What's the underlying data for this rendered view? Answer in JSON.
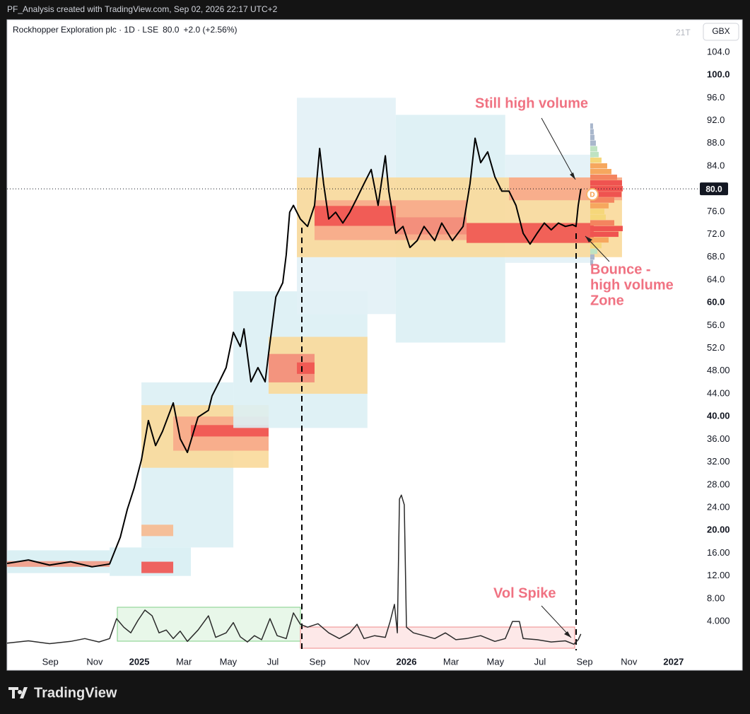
{
  "header": "PF_Analysis created with TradingView.com, Sep 02, 2026 22:17 UTC+2",
  "footer": "TradingView",
  "interval_badge": "21T",
  "currency": "GBX",
  "chart_data": {
    "type": "line",
    "title": "Rockhopper Exploration plc · 1D · LSE",
    "price_label": "80.0",
    "change_label": "+2.0 (+2.56%)",
    "last_price": {
      "value": 80,
      "label": "80.0"
    },
    "annotations": {
      "still_high": "Still high volume",
      "bounce": [
        "Bounce -",
        "high volume",
        "Zone"
      ],
      "vol_spike": "Vol Spike"
    },
    "xlim": [
      2024.505,
      2027.085
    ],
    "xticks": [
      {
        "value": 2024.667,
        "label": "Sep"
      },
      {
        "value": 2024.833,
        "label": "Nov"
      },
      2025,
      {
        "value": 2025.167,
        "label": "Mar"
      },
      {
        "value": 2025.333,
        "label": "May"
      },
      {
        "value": 2025.5,
        "label": "Jul"
      },
      {
        "value": 2025.667,
        "label": "Sep"
      },
      {
        "value": 2025.833,
        "label": "Nov"
      },
      2026,
      {
        "value": 2026.167,
        "label": "Mar"
      },
      {
        "value": 2026.333,
        "label": "May"
      },
      {
        "value": 2026.5,
        "label": "Jul"
      },
      {
        "value": 2026.667,
        "label": "Sep"
      },
      {
        "value": 2026.833,
        "label": "Nov"
      },
      2027
    ],
    "ylim": [
      -1.7,
      109.7
    ],
    "yticks": [
      {
        "value": 104,
        "label": "104.0"
      },
      {
        "value": 100,
        "label": "100.0"
      },
      {
        "value": 96,
        "label": "96.0"
      },
      {
        "value": 92,
        "label": "92.0"
      },
      {
        "value": 88,
        "label": "88.0"
      },
      {
        "value": 84,
        "label": "84.0"
      },
      {
        "value": 76,
        "label": "76.0"
      },
      {
        "value": 72,
        "label": "72.0"
      },
      {
        "value": 68,
        "label": "68.0"
      },
      {
        "value": 64,
        "label": "64.0"
      },
      {
        "value": 60,
        "label": "60.0"
      },
      {
        "value": 56,
        "label": "56.0"
      },
      {
        "value": 52,
        "label": "52.0"
      },
      {
        "value": 48,
        "label": "48.00"
      },
      {
        "value": 44,
        "label": "44.00"
      },
      {
        "value": 40,
        "label": "40.00"
      },
      {
        "value": 36,
        "label": "36.00"
      },
      {
        "value": 32,
        "label": "32.00"
      },
      {
        "value": 28,
        "label": "28.00"
      },
      {
        "value": 24,
        "label": "24.00"
      },
      {
        "value": 20,
        "label": "20.00"
      },
      {
        "value": 16,
        "label": "16.00"
      },
      {
        "value": 12,
        "label": "12.00"
      },
      {
        "value": 8,
        "label": "8.00"
      },
      {
        "value": 4,
        "label": "4.000"
      }
    ],
    "grid": false,
    "series": [
      {
        "color": "#000000",
        "width": 2,
        "x": [
          2024.505,
          2024.585,
          2024.664,
          2024.743,
          2024.823,
          2024.889,
          2024.929,
          2024.955,
          2024.981,
          2025.008,
          2025.034,
          2025.061,
          2025.087,
          2025.127,
          2025.153,
          2025.18,
          2025.22,
          2025.259,
          2025.272,
          2025.299,
          2025.325,
          2025.352,
          2025.378,
          2025.392,
          2025.418,
          2025.444,
          2025.471,
          2025.484,
          2025.511,
          2025.537,
          2025.55,
          2025.563,
          2025.577,
          2025.603,
          2025.63,
          2025.656,
          2025.675,
          2025.69,
          2025.709,
          2025.735,
          2025.762,
          2025.788,
          2025.815,
          2025.841,
          2025.868,
          2025.894,
          2025.921,
          2025.934,
          2025.96,
          2025.987,
          2026.013,
          2026.04,
          2026.066,
          2026.106,
          2026.132,
          2026.172,
          2026.212,
          2026.238,
          2026.257,
          2026.278,
          2026.304,
          2026.331,
          2026.357,
          2026.384,
          2026.41,
          2026.437,
          2026.463,
          2026.489,
          2026.516,
          2026.542,
          2026.569,
          2026.595,
          2026.622,
          2026.635,
          2026.643,
          2026.653
        ],
        "values": [
          14.2,
          14.8,
          13.9,
          14.5,
          13.6,
          14.1,
          18.8,
          23.7,
          27.5,
          32.4,
          39.3,
          34.9,
          37.4,
          42.4,
          36.1,
          33.7,
          39.9,
          41.1,
          43.6,
          46.1,
          48.6,
          54.8,
          52.3,
          55.4,
          46.1,
          48.6,
          46.1,
          51.1,
          61.0,
          63.5,
          68.4,
          75.9,
          77.1,
          74.7,
          73.4,
          77.1,
          87.1,
          80.9,
          74.7,
          75.9,
          74.0,
          75.9,
          78.4,
          80.9,
          83.4,
          77.1,
          85.8,
          79.6,
          72.2,
          73.4,
          69.7,
          70.9,
          73.4,
          70.9,
          74.0,
          70.9,
          73.4,
          80.9,
          88.9,
          84.6,
          86.5,
          82.1,
          79.6,
          79.6,
          77.1,
          72.2,
          70.3,
          72.2,
          74.0,
          72.8,
          74.0,
          73.4,
          73.7,
          73.4,
          77.1,
          80.0
        ]
      },
      {
        "color": "#2a2a2a",
        "width": 1.5,
        "x": [
          2024.505,
          2024.585,
          2024.664,
          2024.743,
          2024.796,
          2024.849,
          2024.889,
          2024.915,
          2024.942,
          2024.968,
          2024.995,
          2025.021,
          2025.048,
          2025.074,
          2025.101,
          2025.127,
          2025.153,
          2025.18,
          2025.22,
          2025.259,
          2025.286,
          2025.325,
          2025.352,
          2025.378,
          2025.405,
          2025.431,
          2025.458,
          2025.489,
          2025.516,
          2025.55,
          2025.577,
          2025.603,
          2025.63,
          2025.669,
          2025.709,
          2025.749,
          2025.788,
          2025.815,
          2025.841,
          2025.881,
          2025.921,
          2025.939,
          2025.955,
          2025.966,
          2025.974,
          2025.981,
          2025.992,
          2026.0,
          2026.026,
          2026.066,
          2026.106,
          2026.146,
          2026.185,
          2026.225,
          2026.278,
          2026.331,
          2026.37,
          2026.397,
          2026.423,
          2026.437,
          2026.489,
          2026.542,
          2026.595,
          2026.627,
          2026.643,
          2026.653
        ],
        "values": [
          0.2,
          0.6,
          0.1,
          0.5,
          1.0,
          0.4,
          1.0,
          4.5,
          3.0,
          2.0,
          4.2,
          6.0,
          5.0,
          2.0,
          2.5,
          1.0,
          2.3,
          0.5,
          2.5,
          5.0,
          1.2,
          2.0,
          3.8,
          1.3,
          0.4,
          1.5,
          0.8,
          4.5,
          1.5,
          1.0,
          5.5,
          3.5,
          3.0,
          3.6,
          2.0,
          1.0,
          2.0,
          3.5,
          1.0,
          1.5,
          1.2,
          4.0,
          7.0,
          2.0,
          25.5,
          26.2,
          24.5,
          3.0,
          2.0,
          1.5,
          1.0,
          2.0,
          0.8,
          1.0,
          1.5,
          0.5,
          1.0,
          4.0,
          4.0,
          1.0,
          0.8,
          0.4,
          0.6,
          0.0,
          0.8,
          1.8
        ]
      }
    ],
    "heatmap": [
      {
        "x": [
          2024.505,
          2024.889
        ],
        "y": [
          12.5,
          16.5
        ],
        "color": "#d7eef3"
      },
      {
        "x": [
          2024.505,
          2024.889
        ],
        "y": [
          13.6,
          14.6
        ],
        "color": "#f29a85"
      },
      {
        "x": [
          2024.889,
          2025.193
        ],
        "y": [
          12,
          17
        ],
        "color": "#d7eef3"
      },
      {
        "x": [
          2025.008,
          2025.127
        ],
        "y": [
          12.5,
          14.5
        ],
        "color": "#ef5350"
      },
      {
        "x": [
          2025.008,
          2025.352
        ],
        "y": [
          17,
          46
        ],
        "color": "#dcf0f4"
      },
      {
        "x": [
          2025.008,
          2025.484
        ],
        "y": [
          31,
          42
        ],
        "color": "#f9d99a"
      },
      {
        "x": [
          2025.127,
          2025.484
        ],
        "y": [
          34,
          40
        ],
        "color": "#f7a989"
      },
      {
        "x": [
          2025.193,
          2025.484
        ],
        "y": [
          36.5,
          38.5
        ],
        "color": "#ef5350"
      },
      {
        "x": [
          2025.008,
          2025.127
        ],
        "y": [
          19,
          21
        ],
        "color": "#f7b98f"
      },
      {
        "x": [
          2025.352,
          2025.854
        ],
        "y": [
          38,
          62
        ],
        "color": "#dcf0f4"
      },
      {
        "x": [
          2025.484,
          2025.854
        ],
        "y": [
          44,
          54
        ],
        "color": "#f9d99a"
      },
      {
        "x": [
          2025.484,
          2025.656
        ],
        "y": [
          46,
          51
        ],
        "color": "#f28c7a"
      },
      {
        "x": [
          2025.59,
          2025.656
        ],
        "y": [
          47.5,
          49.5
        ],
        "color": "#ef5350"
      },
      {
        "x": [
          2025.59,
          2025.96
        ],
        "y": [
          58,
          96
        ],
        "color": "#e2f1f6"
      },
      {
        "x": [
          2025.96,
          2026.37
        ],
        "y": [
          53,
          93
        ],
        "color": "#dcf0f4"
      },
      {
        "x": [
          2026.37,
          2026.701
        ],
        "y": [
          67,
          86
        ],
        "color": "#e2f1f6"
      },
      {
        "x": [
          2025.59,
          2026.807
        ],
        "y": [
          68,
          82
        ],
        "color": "#f9d99a"
      },
      {
        "x": [
          2025.656,
          2026.225
        ],
        "y": [
          71,
          78
        ],
        "color": "#f7a989"
      },
      {
        "x": [
          2025.656,
          2025.96
        ],
        "y": [
          73.5,
          77
        ],
        "color": "#ef5350"
      },
      {
        "x": [
          2025.96,
          2026.225
        ],
        "y": [
          72,
          75
        ],
        "color": "#f28c7a"
      },
      {
        "x": [
          2026.225,
          2026.701
        ],
        "y": [
          70.5,
          74
        ],
        "color": "#ef5350"
      },
      {
        "x": [
          2026.384,
          2026.807
        ],
        "y": [
          78,
          82
        ],
        "color": "#f7a989"
      }
    ],
    "profile": {
      "start": 2026.688,
      "levels": [
        91,
        90,
        89,
        88,
        87,
        86,
        85,
        84,
        83,
        82,
        81,
        80,
        79,
        78,
        77,
        76,
        75,
        74,
        73,
        72,
        71,
        70,
        69,
        68,
        67
      ],
      "values": [
        4,
        5,
        6,
        8,
        10,
        12,
        16,
        24,
        30,
        38,
        45,
        46,
        44,
        34,
        26,
        20,
        22,
        34,
        46,
        40,
        26,
        16,
        10,
        6,
        4
      ]
    }
  }
}
